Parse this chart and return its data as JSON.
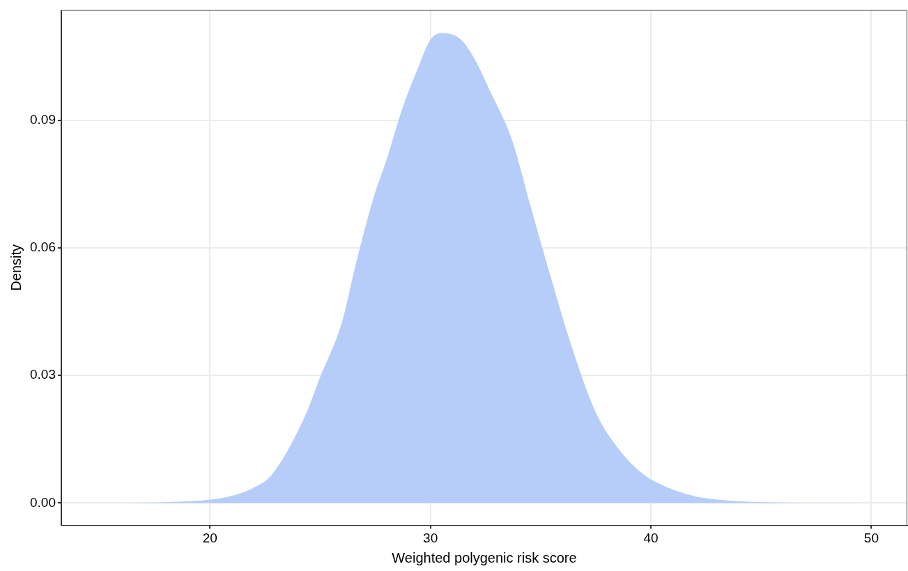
{
  "chart_data": {
    "type": "area",
    "xlabel": "Weighted polygenic risk score",
    "ylabel": "Density",
    "x": [
      15.9,
      18.0,
      20.0,
      20.9,
      21.9,
      22.8,
      24.25,
      25.0,
      26.0,
      26.6,
      27.4,
      28.05,
      28.7,
      29.4,
      30.0,
      30.5,
      31.4,
      32.1,
      32.7,
      33.7,
      34.5,
      35.4,
      36.4,
      37.5,
      38.6,
      39.7,
      40.7,
      42.0,
      43.3,
      45.2,
      50.0
    ],
    "series": [
      {
        "color": "#b5cdf8",
        "values": [
          0,
          0.0002,
          0.0008,
          0.0016,
          0.0034,
          0.0066,
          0.0197,
          0.0296,
          0.0427,
          0.0558,
          0.0714,
          0.0813,
          0.0923,
          0.1018,
          0.1089,
          0.1105,
          0.1089,
          0.1035,
          0.0969,
          0.0854,
          0.0706,
          0.0542,
          0.0369,
          0.0213,
          0.0123,
          0.0066,
          0.0038,
          0.0016,
          0.0007,
          0.0002,
          0
        ]
      }
    ],
    "xlim": [
      13.26,
      51.63
    ],
    "ylim": [
      -0.0052,
      0.1159
    ],
    "xticks": [
      20,
      30,
      40,
      50
    ],
    "yticks": [
      {
        "value": 0,
        "label": "0.00"
      },
      {
        "value": 0.03,
        "label": "0.03"
      },
      {
        "value": 0.06,
        "label": "0.06"
      },
      {
        "value": 0.09,
        "label": "0.09"
      }
    ],
    "grid": true,
    "legend": false,
    "marker": "none"
  }
}
